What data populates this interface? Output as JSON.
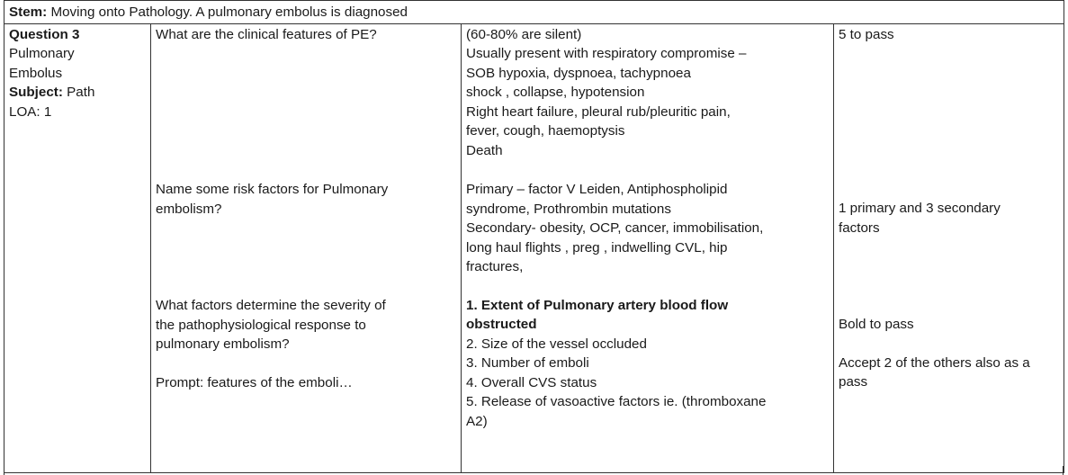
{
  "stem": {
    "label": "Stem:",
    "text": "Moving onto Pathology. A pulmonary embolus is diagnosed"
  },
  "meta": {
    "question_label": "Question 3",
    "topic_line1": "Pulmonary",
    "topic_line2": "Embolus",
    "subject_label": "Subject:",
    "subject_value": "Path",
    "loa": "LOA:  1"
  },
  "q1": {
    "question": "What are the clinical features of PE?",
    "answer_lines": [
      "(60-80% are silent)",
      "Usually present with respiratory compromise –",
      "SOB hypoxia, dyspnoea, tachypnoea",
      "shock , collapse, hypotension",
      "Right heart failure, pleural rub/pleuritic pain,",
      "fever, cough, haemoptysis",
      "Death"
    ],
    "pass": "5 to pass"
  },
  "q2": {
    "question_lines": [
      "Name some risk factors for Pulmonary",
      "embolism?"
    ],
    "answer_lines": [
      "Primary – factor V Leiden, Antiphospholipid",
      "syndrome, Prothrombin mutations",
      "Secondary- obesity, OCP, cancer, immobilisation,",
      "long haul flights , preg , indwelling CVL, hip",
      "fractures,"
    ],
    "pass_lines": [
      "1 primary and 3 secondary",
      "factors"
    ]
  },
  "q3": {
    "question_lines": [
      "What factors determine the severity of",
      "the pathophysiological response to",
      "pulmonary embolism?"
    ],
    "prompt": "Prompt: features of the emboli…",
    "answer_bold_lines": [
      "1. Extent of Pulmonary artery blood flow",
      "obstructed"
    ],
    "answer_lines": [
      "2. Size of the vessel occluded",
      "3. Number of emboli",
      "4. Overall CVS status",
      "5. Release of vasoactive factors ie. (thromboxane",
      "A2)"
    ],
    "pass_line1": "Bold to pass",
    "pass_lines2": [
      "Accept 2 of the others also as a",
      "pass"
    ]
  }
}
